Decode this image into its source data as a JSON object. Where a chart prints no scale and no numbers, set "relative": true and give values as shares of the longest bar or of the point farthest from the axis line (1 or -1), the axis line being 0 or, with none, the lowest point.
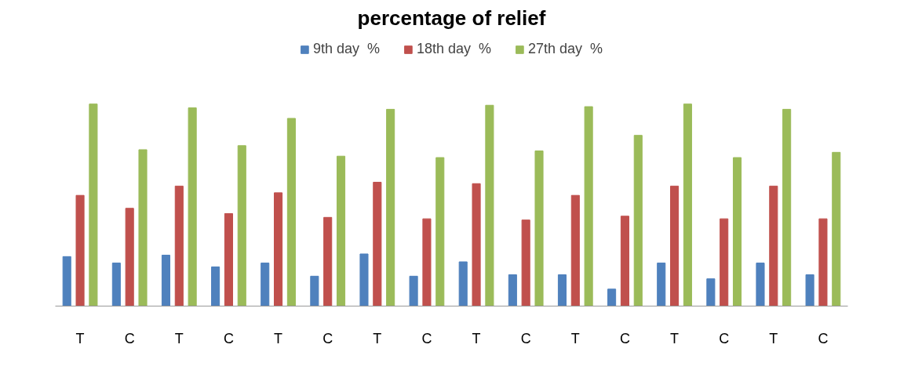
{
  "chart_data": {
    "type": "bar",
    "title": "percentage of relief",
    "relative": true,
    "legend": "top",
    "grid": false,
    "categories": [
      "T",
      "C",
      "T",
      "C",
      "T",
      "C",
      "T",
      "C",
      "T",
      "C",
      "T",
      "C",
      "T",
      "C",
      "T",
      "C"
    ],
    "series": [
      {
        "name": "9th day  %",
        "color": "#4f81bd",
        "values": [
          0.245,
          0.213,
          0.252,
          0.194,
          0.213,
          0.148,
          0.258,
          0.148,
          0.219,
          0.155,
          0.155,
          0.084,
          0.213,
          0.135,
          0.213,
          0.155
        ]
      },
      {
        "name": "18th day  %",
        "color": "#c0504d",
        "values": [
          0.548,
          0.484,
          0.594,
          0.458,
          0.561,
          0.439,
          0.613,
          0.432,
          0.606,
          0.426,
          0.548,
          0.445,
          0.594,
          0.432,
          0.594,
          0.432
        ]
      },
      {
        "name": "27th day  %",
        "color": "#9bbb59",
        "values": [
          1.0,
          0.774,
          0.981,
          0.794,
          0.929,
          0.742,
          0.974,
          0.735,
          0.994,
          0.768,
          0.987,
          0.845,
          1.0,
          0.735,
          0.974,
          0.761
        ]
      }
    ]
  }
}
